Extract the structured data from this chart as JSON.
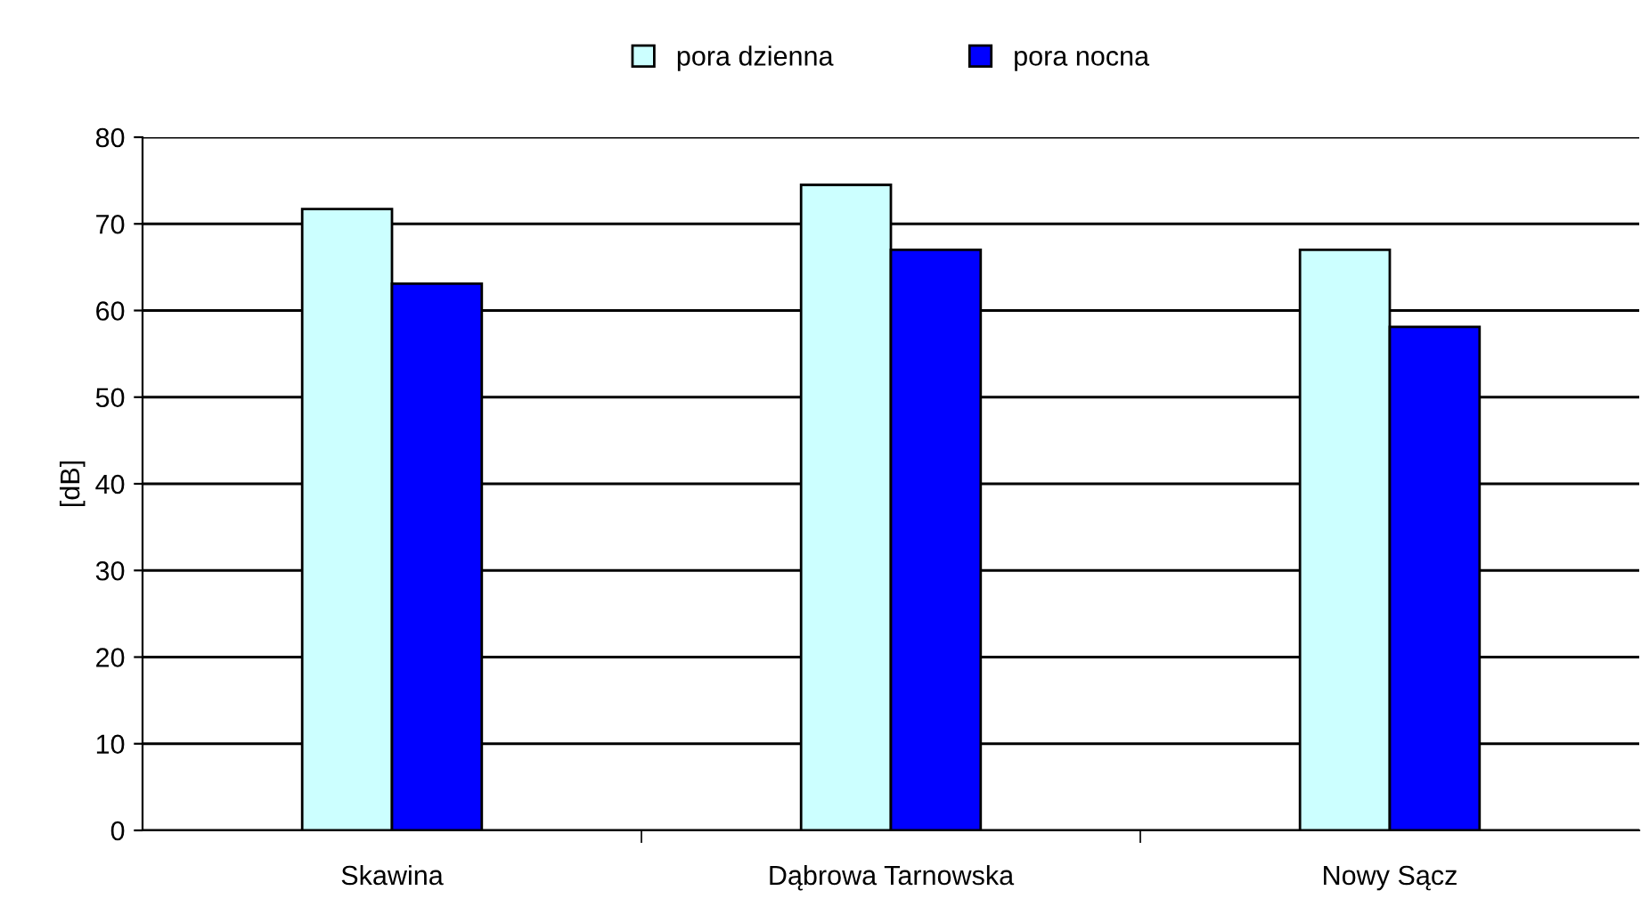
{
  "chart_data": {
    "type": "bar",
    "ylabel": "[dB]",
    "categories": [
      "Skawina",
      "Dąbrowa Tarnowska",
      "Nowy Sącz"
    ],
    "series": [
      {
        "name": "pora dzienna",
        "color": "#ccffff",
        "values": [
          71.7,
          74.5,
          67.0
        ]
      },
      {
        "name": "pora nocna",
        "color": "#0000ff",
        "values": [
          63.1,
          67.0,
          58.1
        ]
      }
    ],
    "ylim": [
      0,
      80
    ],
    "yticks": [
      0,
      10,
      20,
      30,
      40,
      50,
      60,
      70,
      80
    ],
    "grid": "y",
    "legend": "top"
  }
}
